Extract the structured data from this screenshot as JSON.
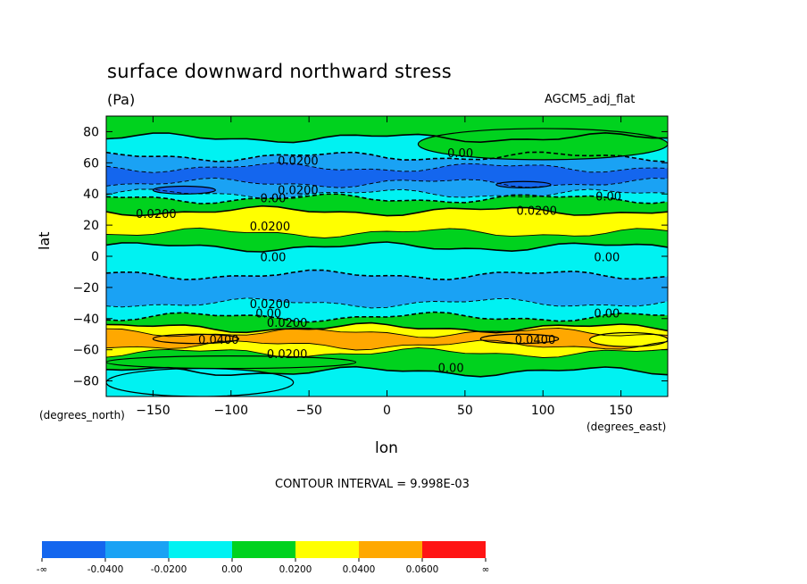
{
  "chart_data": {
    "type": "heatmap",
    "title": "surface downward northward stress",
    "units": "(Pa)",
    "dataset": "AGCM5_adj_flat",
    "xlabel": "lon",
    "ylabel": "lat",
    "x_unit_label": "(degrees_east)",
    "y_unit_label": "(degrees_north)",
    "xlim": [
      -180,
      180
    ],
    "ylim": [
      -90,
      90
    ],
    "x_ticks": [
      -150,
      -100,
      -50,
      0,
      50,
      100,
      150
    ],
    "y_ticks": [
      80,
      60,
      40,
      20,
      0,
      -20,
      -40,
      -60,
      -80
    ],
    "contour_interval_label": "CONTOUR INTERVAL = 9.998E-03",
    "color_levels": [
      "-∞",
      "-0.0400",
      "-0.0200",
      "0.00",
      "0.0200",
      "0.0400",
      "0.0600",
      "∞"
    ],
    "colors": [
      "#1466ee",
      "#1aa2f4",
      "#00f2f2",
      "#00d21e",
      "#ffff00",
      "#ffa800",
      "#ff1414"
    ],
    "zonal_bands": [
      {
        "lat": [
          76,
          90
        ],
        "level": 3
      },
      {
        "lat": [
          64,
          76
        ],
        "level": 2
      },
      {
        "lat": [
          57,
          64
        ],
        "level": 1
      },
      {
        "lat": [
          47,
          57
        ],
        "level": 0
      },
      {
        "lat": [
          40,
          47
        ],
        "level": 1
      },
      {
        "lat": [
          37,
          40
        ],
        "level": 2
      },
      {
        "lat": [
          29,
          37
        ],
        "level": 3
      },
      {
        "lat": [
          15,
          29
        ],
        "level": 4
      },
      {
        "lat": [
          6,
          15
        ],
        "level": 3
      },
      {
        "lat": [
          -12,
          6
        ],
        "level": 2
      },
      {
        "lat": [
          -30,
          -12
        ],
        "level": 1
      },
      {
        "lat": [
          -39,
          -30
        ],
        "level": 2
      },
      {
        "lat": [
          -46,
          -39
        ],
        "level": 3
      },
      {
        "lat": [
          -49,
          -46
        ],
        "level": 4
      },
      {
        "lat": [
          -57,
          -49
        ],
        "level": 5
      },
      {
        "lat": [
          -62,
          -57
        ],
        "level": 4
      },
      {
        "lat": [
          -74,
          -62
        ],
        "level": 3
      },
      {
        "lat": [
          -90,
          -74
        ],
        "level": 2
      }
    ],
    "patches": [
      {
        "lon": [
          20,
          180
        ],
        "lat": [
          62,
          82
        ],
        "level": 3
      },
      {
        "lon": [
          -180,
          -60
        ],
        "lat": [
          -90,
          -72
        ],
        "level": 2
      },
      {
        "lon": [
          -180,
          -20
        ],
        "lat": [
          -72,
          -64
        ],
        "level": 3
      },
      {
        "lon": [
          -150,
          -110
        ],
        "lat": [
          40,
          45
        ],
        "level": 0
      },
      {
        "lon": [
          70,
          105
        ],
        "lat": [
          44,
          48
        ],
        "level": 0
      },
      {
        "lon": [
          -150,
          -95
        ],
        "lat": [
          -56,
          -50
        ],
        "level": 5
      },
      {
        "lon": [
          60,
          110
        ],
        "lat": [
          -56,
          -50
        ],
        "level": 5
      },
      {
        "lon": [
          130,
          180
        ],
        "lat": [
          -58,
          -49
        ],
        "level": 4
      }
    ],
    "contour_labels": [
      {
        "text": "0.00",
        "lon": 47,
        "lat": 66
      },
      {
        "text": "0.0200",
        "lon": -57,
        "lat": 61
      },
      {
        "text": "0.0200",
        "lon": -57,
        "lat": 42
      },
      {
        "text": "0.00",
        "lon": -73,
        "lat": 37
      },
      {
        "text": "0.00",
        "lon": 142,
        "lat": 38
      },
      {
        "text": "0.0200",
        "lon": -148,
        "lat": 27
      },
      {
        "text": "0.0200",
        "lon": 96,
        "lat": 29
      },
      {
        "text": "0.0200",
        "lon": -75,
        "lat": 19
      },
      {
        "text": "0.00",
        "lon": -73,
        "lat": -1
      },
      {
        "text": "0.00",
        "lon": 141,
        "lat": -1
      },
      {
        "text": "0.0200",
        "lon": -75,
        "lat": -31
      },
      {
        "text": "0.00",
        "lon": -76,
        "lat": -37
      },
      {
        "text": "0.0200",
        "lon": -64,
        "lat": -43
      },
      {
        "text": "0.00",
        "lon": 141,
        "lat": -37
      },
      {
        "text": "0.0400",
        "lon": -108,
        "lat": -54
      },
      {
        "text": "0.0400",
        "lon": 95,
        "lat": -54
      },
      {
        "text": "0.0200",
        "lon": -64,
        "lat": -63
      },
      {
        "text": "0.00",
        "lon": 41,
        "lat": -72
      }
    ]
  }
}
